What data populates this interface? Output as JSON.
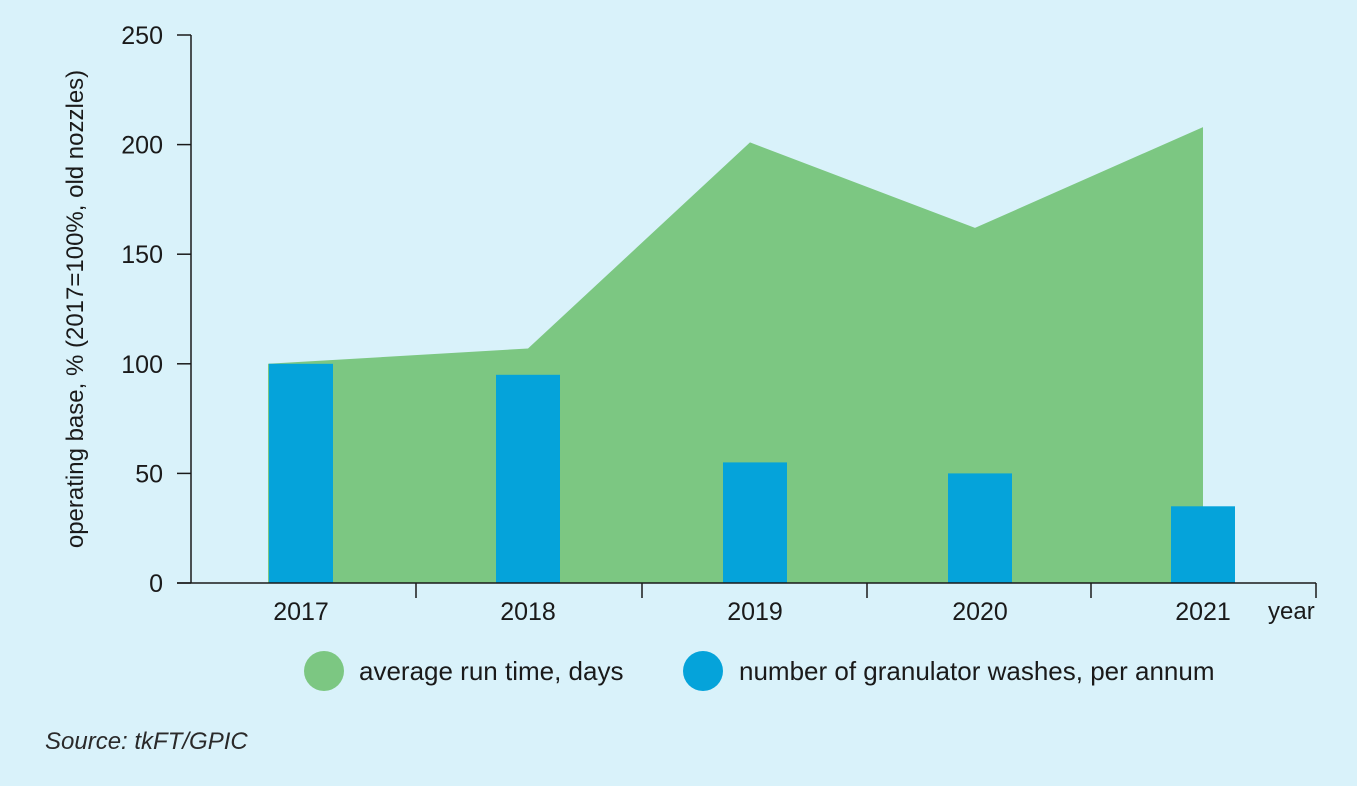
{
  "chart_data": {
    "type": "bar+area",
    "categories": [
      "2017",
      "2018",
      "2019",
      "2020",
      "2021"
    ],
    "xlabel": "year",
    "ylabel": "operating base, %  (2017=100%, old nozzles)",
    "ylim": [
      0,
      250
    ],
    "yticks": [
      0,
      50,
      100,
      150,
      200,
      250
    ],
    "grid": false,
    "legend_position": "bottom",
    "series": [
      {
        "name": "average run time, days",
        "type": "area",
        "color": "#7cc782",
        "values": [
          100,
          107,
          201,
          162,
          208
        ]
      },
      {
        "name": "number of granulator washes, per annum",
        "type": "bar",
        "color": "#05a3da",
        "values": [
          100,
          95,
          55,
          50,
          35
        ]
      }
    ]
  },
  "source": "Source: tkFT/GPIC"
}
